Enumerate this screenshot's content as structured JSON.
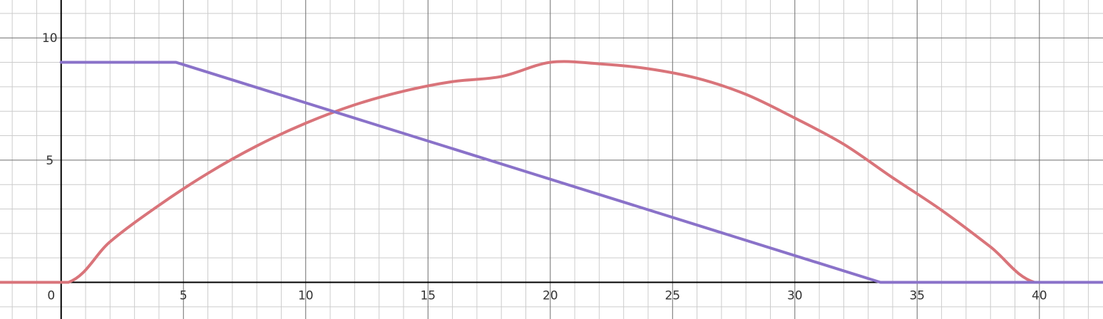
{
  "chart_data": {
    "type": "line",
    "title": "",
    "xlabel": "",
    "ylabel": "",
    "xlim": [
      -2.5,
      42.6
    ],
    "ylim": [
      -1.5,
      11.55
    ],
    "grid": true,
    "major_x_step": 5,
    "major_y_step": 5,
    "minor_x_step": 1,
    "minor_y_step": 1,
    "x_ticks": [
      0,
      5,
      10,
      15,
      20,
      25,
      30,
      35,
      40
    ],
    "x_tick_labels": [
      "0",
      "5",
      "10",
      "15",
      "20",
      "25",
      "30",
      "35",
      "40"
    ],
    "y_ticks": [
      5,
      10
    ],
    "y_tick_labels": [
      "5",
      "10"
    ],
    "series": [
      {
        "color": "#d9747a",
        "points": [
          [
            -2.5,
            0
          ],
          [
            0.3,
            0
          ],
          [
            2,
            1.66
          ],
          [
            4,
            3.15
          ],
          [
            6,
            4.46
          ],
          [
            8,
            5.58
          ],
          [
            10,
            6.51
          ],
          [
            12,
            7.26
          ],
          [
            14,
            7.82
          ],
          [
            16,
            8.21
          ],
          [
            18,
            8.42
          ],
          [
            20,
            9.0
          ],
          [
            22,
            8.94
          ],
          [
            24,
            8.74
          ],
          [
            26,
            8.35
          ],
          [
            28,
            7.69
          ],
          [
            30,
            6.72
          ],
          [
            32,
            5.65
          ],
          [
            34,
            4.28
          ],
          [
            36,
            2.95
          ],
          [
            38,
            1.45
          ],
          [
            39.8,
            0
          ],
          [
            42.6,
            0
          ]
        ]
      },
      {
        "color": "#8a72c9",
        "points": [
          [
            0,
            9.0
          ],
          [
            4.7,
            9.0
          ],
          [
            33.5,
            0
          ],
          [
            42.6,
            0
          ]
        ]
      }
    ]
  }
}
